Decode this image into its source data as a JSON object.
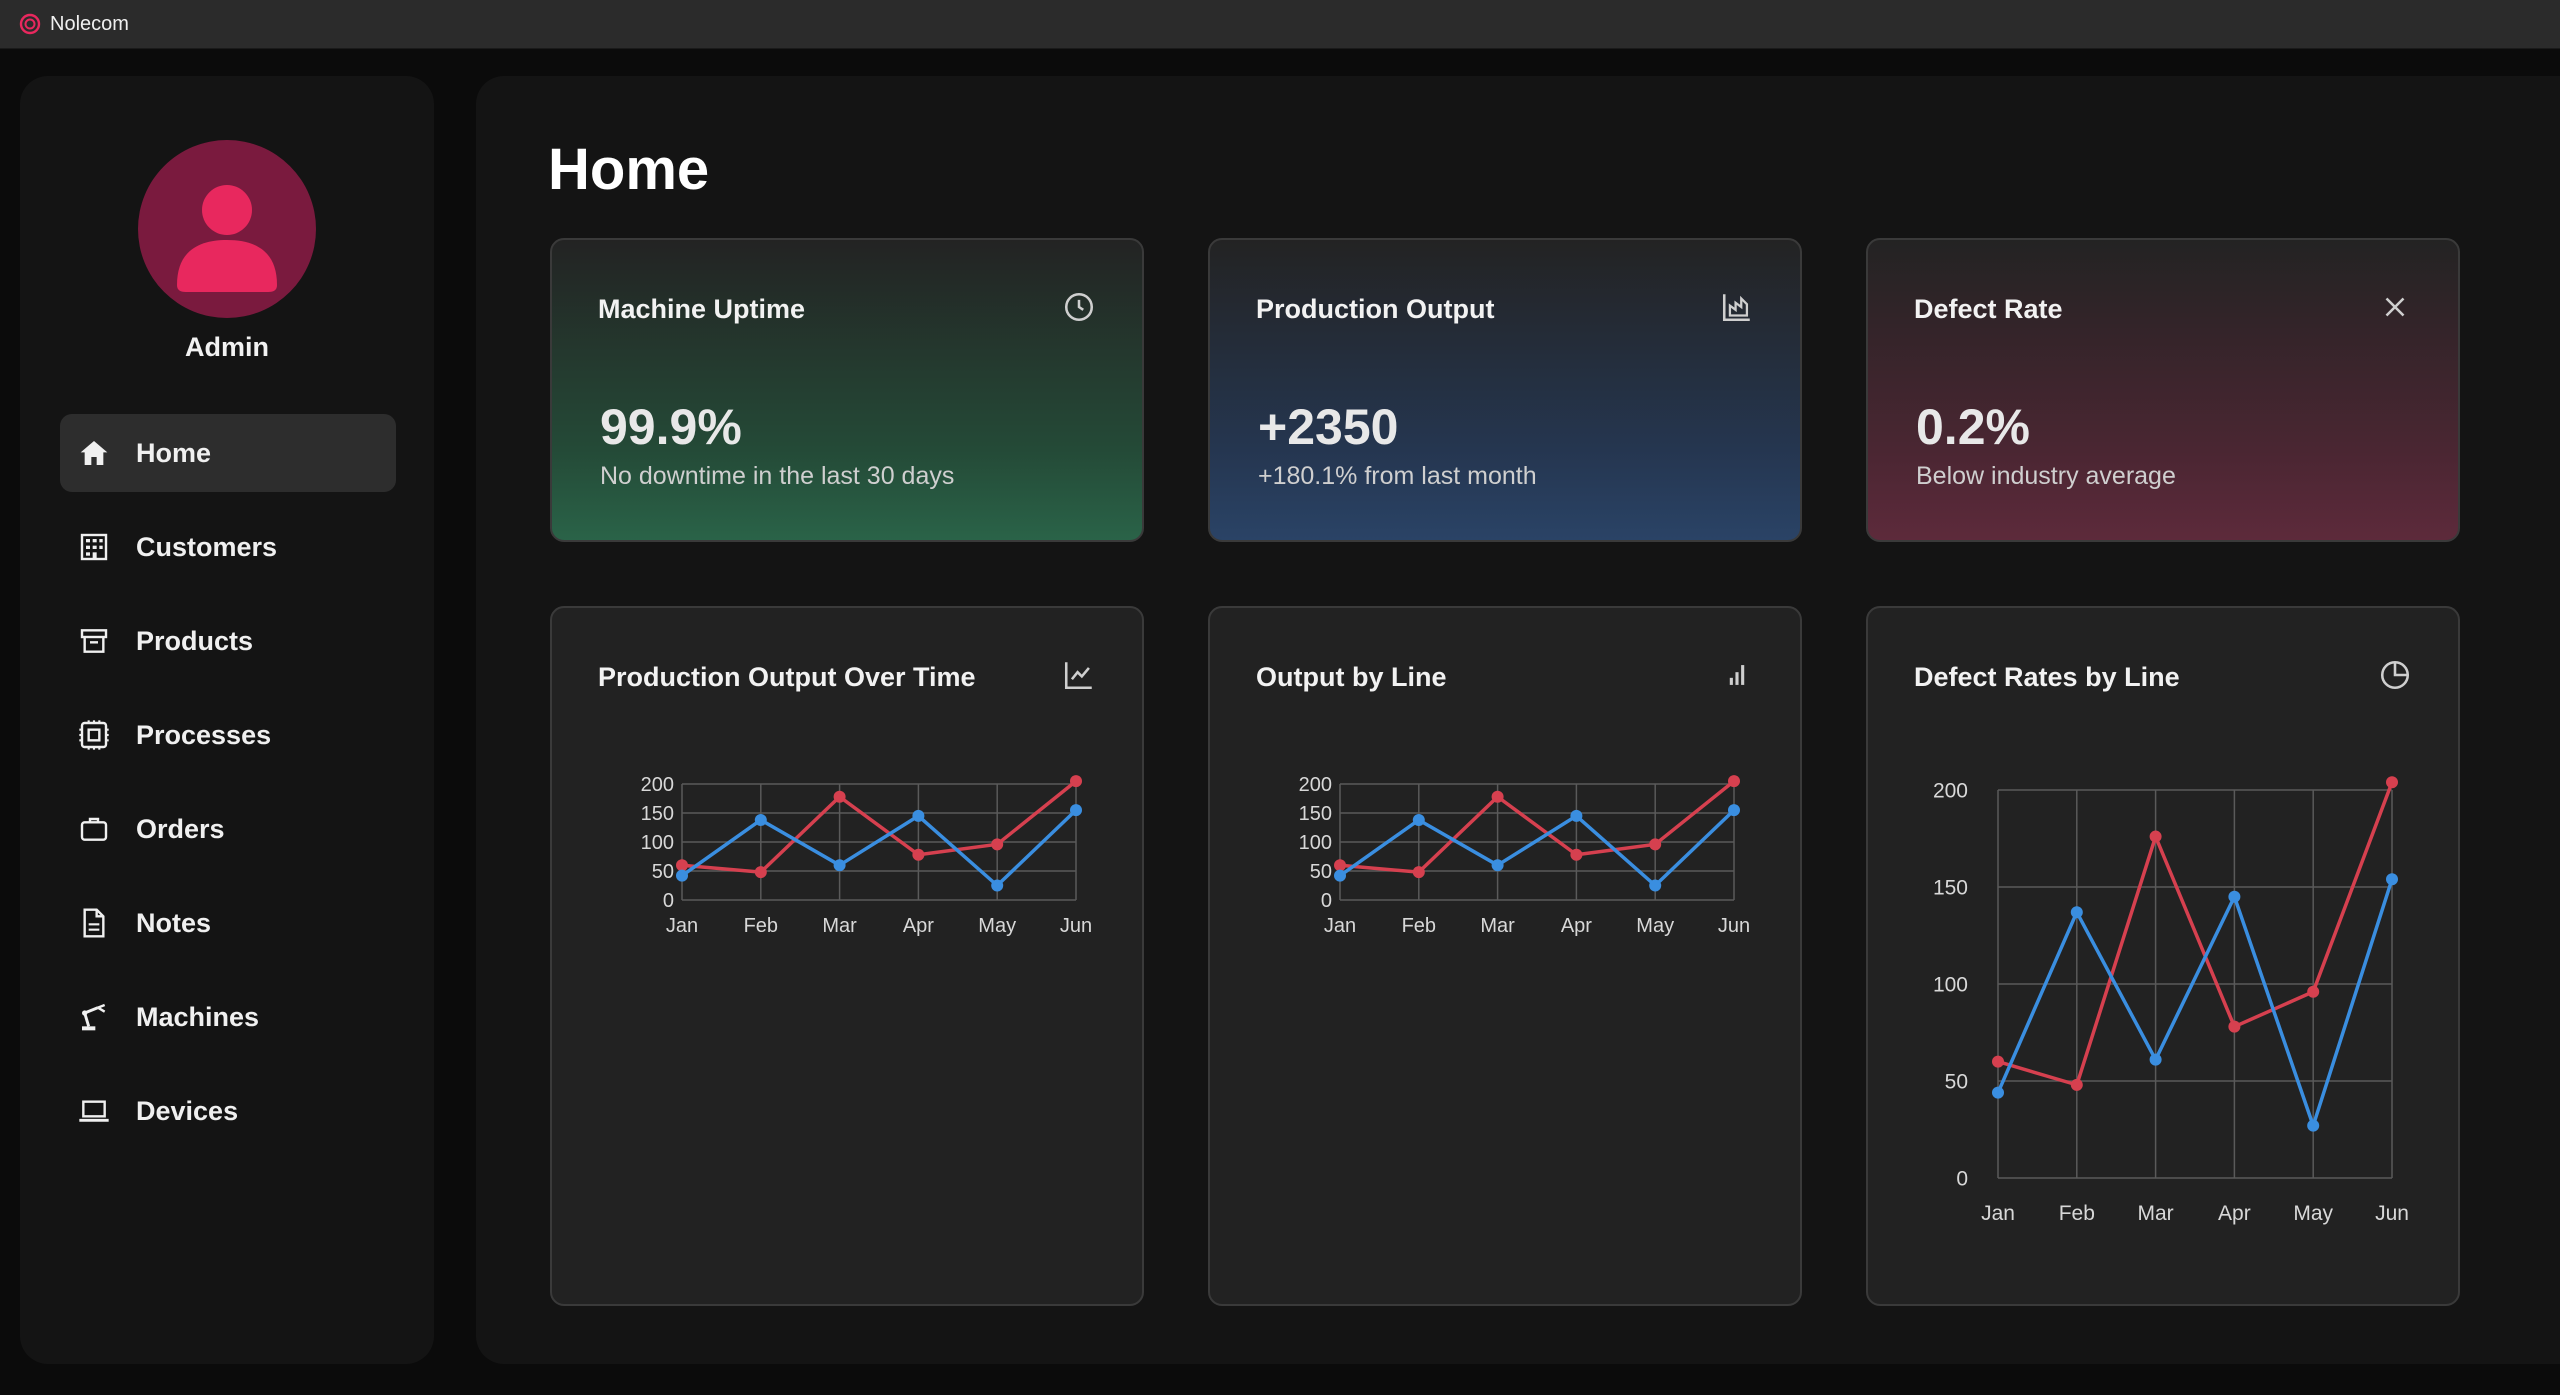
{
  "app": {
    "title": "Nolecom",
    "accent": "#e8285e"
  },
  "sidebar": {
    "user": "Admin",
    "items": [
      {
        "label": "Home",
        "icon": "home-icon",
        "active": true
      },
      {
        "label": "Customers",
        "icon": "building-icon",
        "active": false
      },
      {
        "label": "Products",
        "icon": "archive-box-icon",
        "active": false
      },
      {
        "label": "Processes",
        "icon": "cpu-icon",
        "active": false
      },
      {
        "label": "Orders",
        "icon": "briefcase-icon",
        "active": false
      },
      {
        "label": "Notes",
        "icon": "document-icon",
        "active": false
      },
      {
        "label": "Machines",
        "icon": "robot-arm-icon",
        "active": false
      },
      {
        "label": "Devices",
        "icon": "laptop-icon",
        "active": false
      }
    ]
  },
  "main": {
    "title": "Home",
    "stats": [
      {
        "title": "Machine Uptime",
        "value": "99.9%",
        "sub": "No downtime in the last 30 days",
        "icon": "clock-icon",
        "color": "#2a6348"
      },
      {
        "title": "Production Output",
        "value": "+2350",
        "sub": "+180.1% from last month",
        "icon": "factory-chart-icon",
        "color": "#2a4366"
      },
      {
        "title": "Defect Rate",
        "value": "0.2%",
        "sub": "Below industry average",
        "icon": "x-icon",
        "color": "#5d2a3b"
      }
    ],
    "charts": [
      {
        "title": "Production Output Over Time",
        "icon": "line-chart-icon"
      },
      {
        "title": "Output by Line",
        "icon": "bar-chart-icon"
      },
      {
        "title": "Defect Rates by Line",
        "icon": "pie-chart-icon"
      }
    ]
  },
  "chart_data": [
    {
      "type": "line",
      "categories": [
        "Jan",
        "Feb",
        "Mar",
        "Apr",
        "May",
        "Jun"
      ],
      "ylim": [
        0,
        200
      ],
      "yticks": [
        0,
        50,
        100,
        150,
        200
      ],
      "grid": true,
      "series": [
        {
          "color": "#d6404f",
          "values": [
            60,
            48,
            178,
            78,
            96,
            205
          ]
        },
        {
          "color": "#3a8ee0",
          "values": [
            42,
            138,
            60,
            145,
            25,
            155
          ]
        }
      ]
    },
    {
      "type": "line",
      "categories": [
        "Jan",
        "Feb",
        "Mar",
        "Apr",
        "May",
        "Jun"
      ],
      "ylim": [
        0,
        200
      ],
      "yticks": [
        0,
        50,
        100,
        150,
        200
      ],
      "grid": true,
      "series": [
        {
          "color": "#d6404f",
          "values": [
            60,
            48,
            178,
            78,
            96,
            205
          ]
        },
        {
          "color": "#3a8ee0",
          "values": [
            42,
            138,
            60,
            145,
            25,
            155
          ]
        }
      ]
    },
    {
      "type": "line",
      "categories": [
        "Jan",
        "Feb",
        "Mar",
        "Apr",
        "May",
        "Jun"
      ],
      "ylim": [
        0,
        200
      ],
      "yticks": [
        0,
        50,
        100,
        150,
        200
      ],
      "grid": true,
      "series": [
        {
          "color": "#d6404f",
          "values": [
            60,
            48,
            176,
            78,
            96,
            204
          ]
        },
        {
          "color": "#3a8ee0",
          "values": [
            44,
            137,
            61,
            145,
            27,
            154
          ]
        }
      ]
    }
  ]
}
